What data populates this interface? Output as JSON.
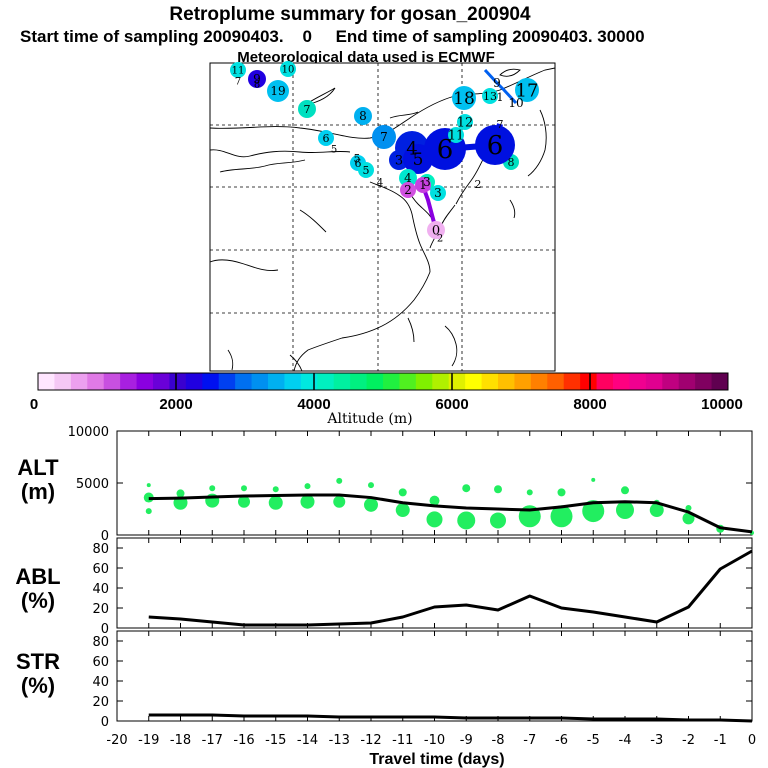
{
  "title": "Retroplume summary for gosan_200904",
  "subtitle": "Start time of sampling 20090403.    0     End time of sampling 20090403. 30000",
  "met_text": "Meteorological data used is ECMWF",
  "colorbar": {
    "ticks": [
      "0",
      "2000",
      "4000",
      "6000",
      "8000",
      "10000"
    ],
    "label": "Altitude (m)",
    "colors": [
      "#ffe6ff",
      "#f5c8f5",
      "#eca0ef",
      "#e07ae6",
      "#c850e0",
      "#a820e0",
      "#8a00e0",
      "#6a00d8",
      "#3a00d0",
      "#2000e0",
      "#0010f0",
      "#0040f0",
      "#0070f0",
      "#0090f0",
      "#00b0f0",
      "#00d0f0",
      "#00e8e0",
      "#00f0c0",
      "#00f0a0",
      "#00f080",
      "#00f060",
      "#20f040",
      "#50f020",
      "#80f000",
      "#b0f000",
      "#e0f000",
      "#ffff00",
      "#ffe000",
      "#ffc000",
      "#ffa000",
      "#ff8000",
      "#ff6000",
      "#ff3000",
      "#ff0000",
      "#ff0060",
      "#ff0080",
      "#f00090",
      "#e00090",
      "#c00080",
      "#a00070",
      "#800060",
      "#600050"
    ]
  },
  "map": {
    "labels": [
      {
        "t": "11",
        "c": "#00e0e0"
      },
      {
        "t": "7",
        "c": ""
      },
      {
        "t": "10",
        "c": "#00e0e0"
      },
      {
        "t": "9",
        "c": "#2000e0"
      },
      {
        "t": "8",
        "c": ""
      },
      {
        "t": "19",
        "c": "#00c0f0"
      },
      {
        "t": "7",
        "c": "#00e0c0"
      },
      {
        "t": "8",
        "c": "#00b0f0"
      },
      {
        "t": "6",
        "c": "#00d0f0"
      },
      {
        "t": "5",
        "c": ""
      },
      {
        "t": "5",
        "c": ""
      },
      {
        "t": "6",
        "c": "#00d0f0"
      },
      {
        "t": "5",
        "c": "#00e0e0"
      },
      {
        "t": "4",
        "c": ""
      },
      {
        "t": "7",
        "c": "#0090f0"
      },
      {
        "t": "4",
        "c": "#0020e0"
      },
      {
        "t": "3",
        "c": "#0020e0"
      },
      {
        "t": "5",
        "c": "#0010e0"
      },
      {
        "t": "6",
        "c": "#0010e0"
      },
      {
        "t": "4",
        "c": "#00e8d0"
      },
      {
        "t": "3",
        "c": "#00f0c0"
      },
      {
        "t": "2",
        "c": "#d050e0"
      },
      {
        "t": "1",
        "c": "#c840e0"
      },
      {
        "t": "0",
        "c": "#f0b0f0"
      },
      {
        "t": "3",
        "c": "#00e0e0"
      },
      {
        "t": "2",
        "c": ""
      },
      {
        "t": "18",
        "c": "#00c0f0"
      },
      {
        "t": "9",
        "c": ""
      },
      {
        "t": "13",
        "c": "#00e0e0"
      },
      {
        "t": "1",
        "c": ""
      },
      {
        "t": "17",
        "c": "#00c0f0"
      },
      {
        "t": "10",
        "c": ""
      },
      {
        "t": "12",
        "c": "#00e0e0"
      },
      {
        "t": "11",
        "c": "#00e0e0"
      },
      {
        "t": "7",
        "c": ""
      },
      {
        "t": "8",
        "c": "#00e0c0"
      },
      {
        "t": "2",
        "c": ""
      }
    ]
  },
  "panels": [
    {
      "label": "ALT",
      "units": "(m)"
    },
    {
      "label": "ABL",
      "units": "(%)"
    },
    {
      "label": "STR",
      "units": "(%)"
    }
  ],
  "chart_data": [
    {
      "type": "line",
      "title": "ALT (m)",
      "xlabel": "Travel time (days)",
      "ylabel": "ALT (m)",
      "xlim": [
        -20,
        0
      ],
      "ylim": [
        0,
        10000
      ],
      "yticks": [
        "10000",
        "5000",
        "0"
      ],
      "xticks": [
        "-20",
        "-19",
        "-18",
        "-17",
        "-16",
        "-15",
        "-14",
        "-13",
        "-12",
        "-11",
        "-10",
        "-9",
        "-8",
        "-7",
        "-6",
        "-5",
        "-4",
        "-3",
        "-2",
        "-1",
        "0"
      ],
      "x": [
        -19,
        -18,
        -17,
        -16,
        -15,
        -14,
        -13,
        -12,
        -11,
        -10,
        -9,
        -8,
        -7,
        -6,
        -5,
        -4,
        -3,
        -2,
        -1,
        0
      ],
      "values": [
        3500,
        3550,
        3650,
        3750,
        3800,
        3850,
        3850,
        3600,
        3100,
        2800,
        2600,
        2500,
        2400,
        2700,
        3100,
        3200,
        3100,
        2200,
        700,
        300
      ],
      "scatter": {
        "name": "plume spread",
        "x": [
          -19,
          -19,
          -19,
          -18,
          -18,
          -17,
          -17,
          -16,
          -16,
          -15,
          -15,
          -14,
          -14,
          -13,
          -13,
          -12,
          -12,
          -11,
          -11,
          -10,
          -10,
          -9,
          -9,
          -8,
          -8,
          -7,
          -7,
          -6,
          -6,
          -5,
          -5,
          -4,
          -4,
          -3,
          -3,
          -2,
          -2,
          -1,
          0
        ],
        "y": [
          2300,
          3600,
          4800,
          3100,
          4000,
          3300,
          4500,
          3200,
          4500,
          3100,
          4400,
          3200,
          4700,
          3200,
          5200,
          2900,
          4800,
          2400,
          4100,
          1500,
          3300,
          1400,
          4500,
          1400,
          4400,
          1800,
          4100,
          1800,
          4100,
          2300,
          5300,
          2400,
          4300,
          2400,
          3100,
          1600,
          2600,
          600,
          200
        ],
        "size": [
          3,
          5,
          2,
          7,
          4,
          7,
          3,
          6,
          3,
          7,
          3,
          7,
          3,
          6,
          3,
          7,
          3,
          7,
          4,
          8,
          5,
          9,
          4,
          8,
          4,
          11,
          3,
          11,
          4,
          11,
          2,
          9,
          4,
          7,
          3,
          6,
          3,
          4,
          2
        ]
      }
    },
    {
      "type": "line",
      "title": "ABL (%)",
      "ylabel": "ABL (%)",
      "xlim": [
        -20,
        0
      ],
      "ylim": [
        0,
        90
      ],
      "yticks": [
        "80",
        "60",
        "40",
        "20",
        "0"
      ],
      "x": [
        -19,
        -18,
        -17,
        -16,
        -15,
        -14,
        -13,
        -12,
        -11,
        -10,
        -9,
        -8,
        -7,
        -6,
        -5,
        -4,
        -3,
        -2,
        -1,
        0
      ],
      "values": [
        11,
        9,
        6,
        3,
        3,
        3,
        4,
        5,
        11,
        21,
        23,
        18,
        32,
        20,
        16,
        11,
        6,
        21,
        59,
        77
      ]
    },
    {
      "type": "line",
      "title": "STR (%)",
      "ylabel": "STR (%)",
      "xlim": [
        -20,
        0
      ],
      "ylim": [
        0,
        90
      ],
      "yticks": [
        "80",
        "60",
        "40",
        "20",
        "0"
      ],
      "x": [
        -19,
        -18,
        -17,
        -16,
        -15,
        -14,
        -13,
        -12,
        -11,
        -10,
        -9,
        -8,
        -7,
        -6,
        -5,
        -4,
        -3,
        -2,
        -1,
        0
      ],
      "values": [
        6,
        6,
        6,
        5,
        5,
        5,
        4,
        4,
        4,
        4,
        3,
        3,
        3,
        3,
        2,
        2,
        2,
        1,
        1,
        0
      ]
    }
  ]
}
